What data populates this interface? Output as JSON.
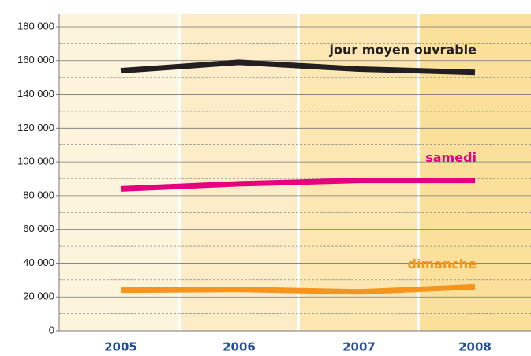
{
  "chart_data": {
    "type": "line",
    "categories": [
      "2005",
      "2006",
      "2007",
      "2008"
    ],
    "series": [
      {
        "name": "jour moyen ouvrable",
        "color": "#231f20",
        "values": [
          154000,
          159000,
          155000,
          153000
        ]
      },
      {
        "name": "samedi",
        "color": "#e6007e",
        "values": [
          84000,
          87000,
          89000,
          89000
        ]
      },
      {
        "name": "dimanche",
        "color": "#f7941d",
        "values": [
          24000,
          24500,
          23000,
          26000
        ]
      }
    ],
    "ylim": [
      0,
      180000
    ],
    "yticks": [
      0,
      {
        "value": 20000,
        "label": "20 000"
      },
      {
        "value": 40000,
        "label": "40 000"
      },
      {
        "value": 60000,
        "label": "60 000"
      },
      {
        "value": 80000,
        "label": "80 000"
      },
      {
        "value": 100000,
        "label": "100 000"
      },
      {
        "value": 120000,
        "label": "120 000"
      },
      {
        "value": 140000,
        "label": "140 000"
      },
      {
        "value": 160000,
        "label": "160 000"
      },
      {
        "value": 180000,
        "label": "180 000"
      }
    ],
    "grid": true
  }
}
